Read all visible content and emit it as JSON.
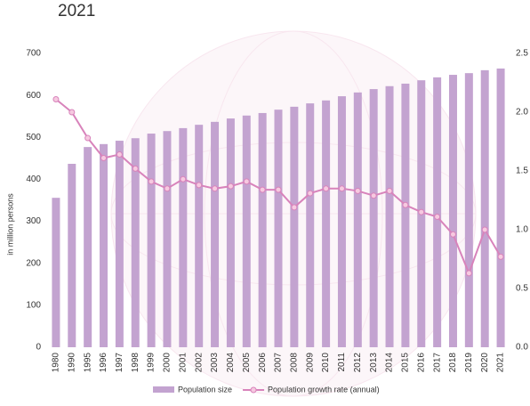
{
  "chart_data": {
    "type": "bar-line",
    "title": "2021",
    "y_label": "in million persons",
    "categories": [
      "1980",
      "1990",
      "1995",
      "1996",
      "1997",
      "1998",
      "1999",
      "2000",
      "2001",
      "2002",
      "2003",
      "2004",
      "2005",
      "2006",
      "2007",
      "2008",
      "2009",
      "2010",
      "2011",
      "2012",
      "2013",
      "2014",
      "2015",
      "2016",
      "2017",
      "2018",
      "2019",
      "2020",
      "2021"
    ],
    "series": [
      {
        "name": "Population size",
        "type": "bar",
        "color": "#c3a3d0",
        "values": [
          356,
          437,
          477,
          484,
          492,
          498,
          509,
          515,
          522,
          530,
          537,
          545,
          552,
          558,
          566,
          573,
          581,
          588,
          598,
          607,
          615,
          622,
          628,
          636,
          643,
          649,
          653,
          660,
          664
        ]
      },
      {
        "name": "Population growth rate (annual)",
        "type": "line",
        "axis": "y2",
        "color": "#d883bb",
        "values": [
          2.11,
          2.0,
          1.78,
          1.61,
          1.64,
          1.52,
          1.41,
          1.35,
          1.43,
          1.38,
          1.35,
          1.37,
          1.41,
          1.34,
          1.34,
          1.19,
          1.31,
          1.35,
          1.35,
          1.33,
          1.29,
          1.33,
          1.21,
          1.15,
          1.11,
          0.96,
          0.63,
          1.0,
          0.77
        ]
      }
    ],
    "ylim": [
      0,
      700
    ],
    "yticks": [
      0,
      100,
      200,
      300,
      400,
      500,
      600,
      700
    ],
    "y2lim": [
      0,
      2.5
    ],
    "y2ticks": [
      {
        "value": 0,
        "label": "0.0"
      },
      {
        "value": 0.5,
        "label": "0.5"
      },
      {
        "value": 1,
        "label": "1.0"
      },
      {
        "value": 1.5,
        "label": "1.5"
      },
      {
        "value": 2,
        "label": "2.0"
      },
      {
        "value": 2.5,
        "label": "2.5"
      }
    ]
  }
}
